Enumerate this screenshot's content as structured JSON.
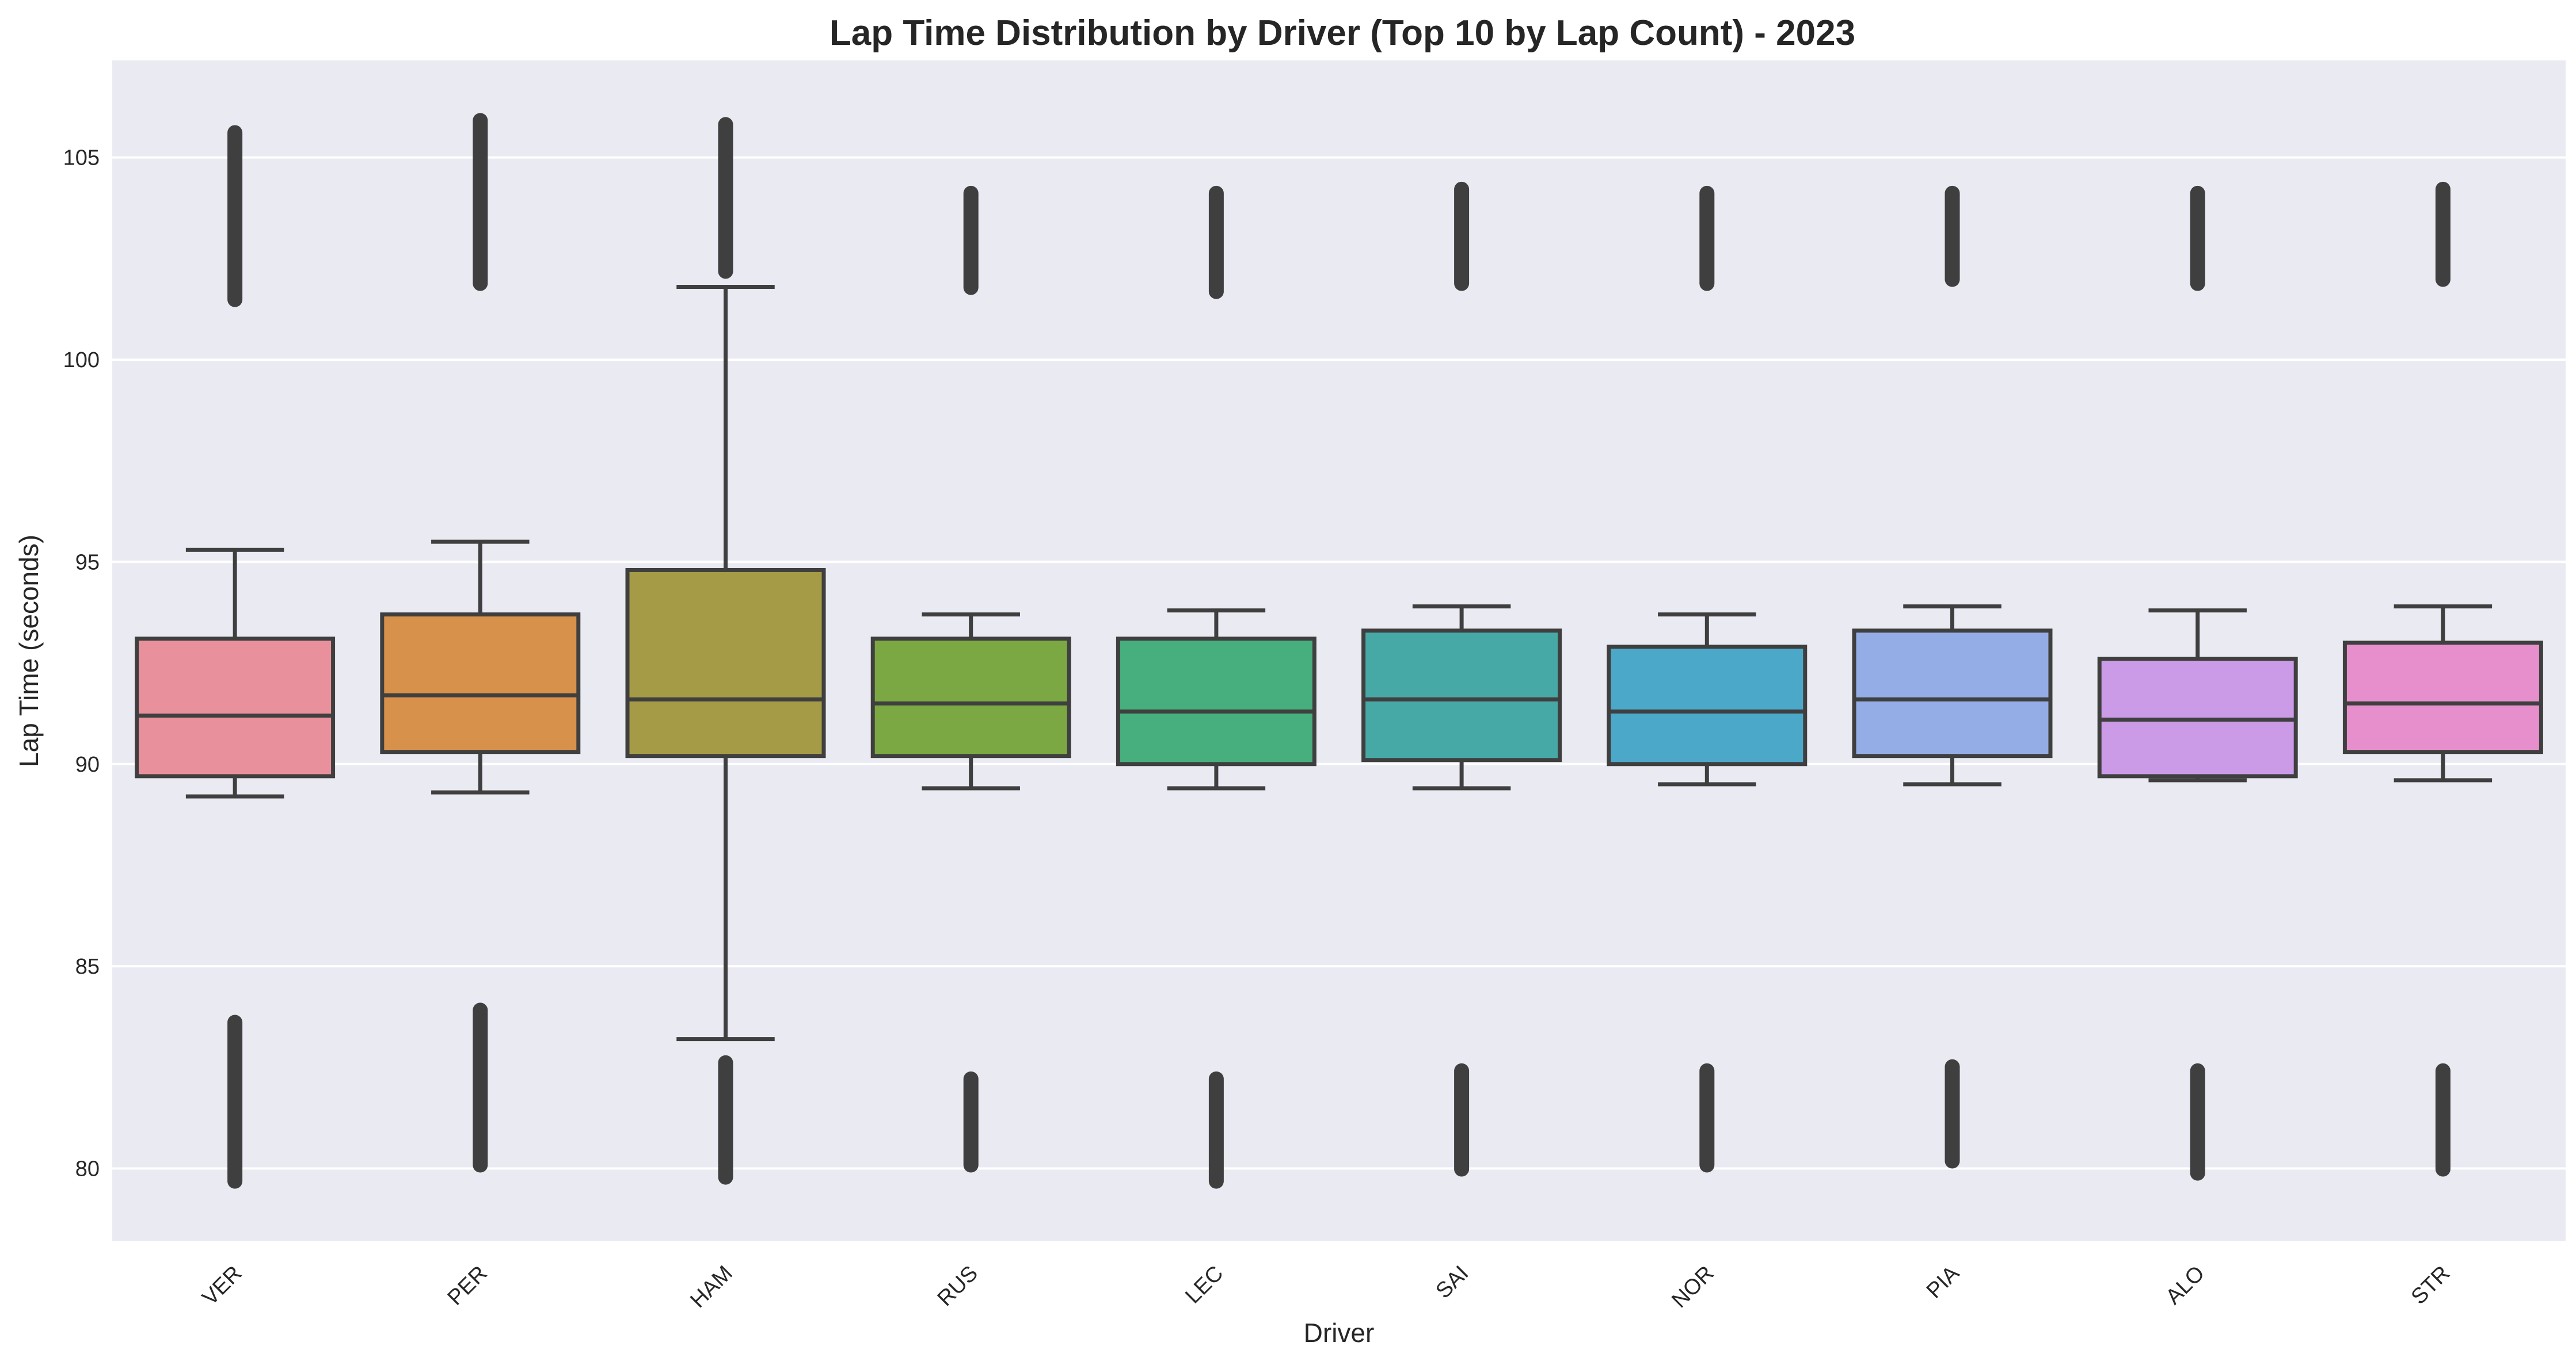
{
  "chart_data": {
    "type": "box",
    "title": "Lap Time Distribution by Driver (Top 10 by Lap Count) - 2023",
    "xlabel": "Driver",
    "ylabel": "Lap Time (seconds)",
    "ylim": [
      78.2,
      107.4
    ],
    "yticks": [
      80,
      85,
      90,
      95,
      100,
      105
    ],
    "grid": true,
    "categories": [
      "VER",
      "PER",
      "HAM",
      "RUS",
      "LEC",
      "SAI",
      "NOR",
      "PIA",
      "ALO",
      "STR"
    ],
    "series": [
      {
        "category": "VER",
        "color": "#e8919c",
        "whisker_low": 89.2,
        "q1": 89.7,
        "median": 91.2,
        "q3": 93.1,
        "whisker_high": 95.3,
        "outliers_low": [
          79.5,
          83.8
        ],
        "outliers_high": [
          101.3,
          105.8
        ]
      },
      {
        "category": "PER",
        "color": "#d8914b",
        "whisker_low": 89.3,
        "q1": 90.3,
        "median": 91.7,
        "q3": 93.7,
        "whisker_high": 95.5,
        "outliers_low": [
          79.9,
          84.1
        ],
        "outliers_high": [
          101.7,
          106.1
        ]
      },
      {
        "category": "HAM",
        "color": "#a59a46",
        "whisker_low": 83.2,
        "q1": 90.2,
        "median": 91.6,
        "q3": 94.8,
        "whisker_high": 101.8,
        "outliers_low": [
          79.6,
          82.8
        ],
        "outliers_high": [
          102.0,
          106.0
        ]
      },
      {
        "category": "RUS",
        "color": "#7ba842",
        "whisker_low": 89.4,
        "q1": 90.2,
        "median": 91.5,
        "q3": 93.1,
        "whisker_high": 93.7,
        "outliers_low": [
          79.9,
          82.4
        ],
        "outliers_high": [
          101.6,
          104.3
        ]
      },
      {
        "category": "LEC",
        "color": "#47ae7d",
        "whisker_low": 89.4,
        "q1": 90.0,
        "median": 91.3,
        "q3": 93.1,
        "whisker_high": 93.8,
        "outliers_low": [
          79.5,
          82.4
        ],
        "outliers_high": [
          101.5,
          104.3
        ]
      },
      {
        "category": "SAI",
        "color": "#47a9a6",
        "whisker_low": 89.4,
        "q1": 90.1,
        "median": 91.6,
        "q3": 93.3,
        "whisker_high": 93.9,
        "outliers_low": [
          79.8,
          82.6
        ],
        "outliers_high": [
          101.7,
          104.4
        ]
      },
      {
        "category": "NOR",
        "color": "#4ca8c9",
        "whisker_low": 89.5,
        "q1": 90.0,
        "median": 91.3,
        "q3": 92.9,
        "whisker_high": 93.7,
        "outliers_low": [
          79.9,
          82.6
        ],
        "outliers_high": [
          101.7,
          104.3
        ]
      },
      {
        "category": "PIA",
        "color": "#94ade6",
        "whisker_low": 89.5,
        "q1": 90.2,
        "median": 91.6,
        "q3": 93.3,
        "whisker_high": 93.9,
        "outliers_low": [
          80.0,
          82.7
        ],
        "outliers_high": [
          101.8,
          104.3
        ]
      },
      {
        "category": "ALO",
        "color": "#cb9be8",
        "whisker_low": 89.6,
        "q1": 89.7,
        "median": 91.1,
        "q3": 92.6,
        "whisker_high": 93.8,
        "outliers_low": [
          79.7,
          82.6
        ],
        "outliers_high": [
          101.7,
          104.3
        ]
      },
      {
        "category": "STR",
        "color": "#e68fcc",
        "whisker_low": 89.6,
        "q1": 90.3,
        "median": 91.5,
        "q3": 93.0,
        "whisker_high": 93.9,
        "outliers_low": [
          79.8,
          82.6
        ],
        "outliers_high": [
          101.8,
          104.4
        ]
      }
    ]
  }
}
